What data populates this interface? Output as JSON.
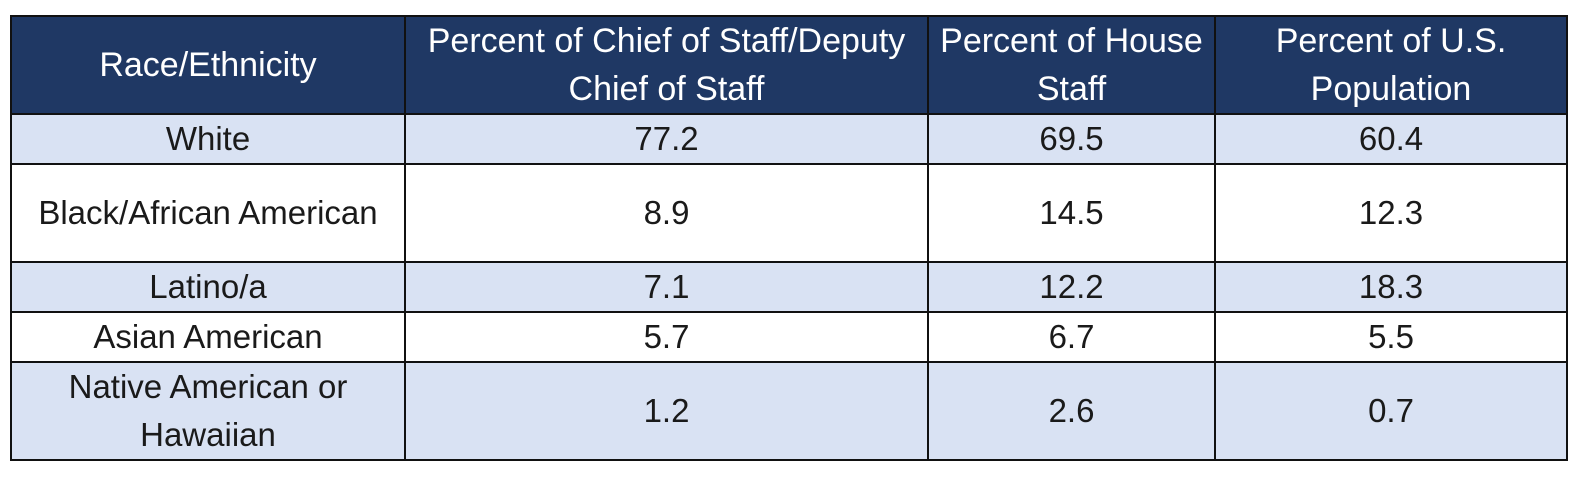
{
  "chart_data": {
    "type": "table",
    "columns": [
      "Race/Ethnicity",
      "Percent of Chief of Staff/Deputy Chief of Staff",
      "Percent of House Staff",
      "Percent of U.S. Population"
    ],
    "rows": [
      {
        "label": "White",
        "values": [
          "77.2",
          "69.5",
          "60.4"
        ]
      },
      {
        "label": "Black/African American",
        "values": [
          "8.9",
          "14.5",
          "12.3"
        ]
      },
      {
        "label": "Latino/a",
        "values": [
          "7.1",
          "12.2",
          "18.3"
        ]
      },
      {
        "label": "Asian American",
        "values": [
          "5.7",
          "6.7",
          "5.5"
        ]
      },
      {
        "label": "Native American or Hawaiian",
        "values": [
          "1.2",
          "2.6",
          "0.7"
        ]
      }
    ],
    "colors": {
      "header_background": "#1f3864",
      "header_text": "#ffffff",
      "shaded_row": "#d9e2f3",
      "plain_row": "#ffffff",
      "border": "#111111"
    }
  }
}
